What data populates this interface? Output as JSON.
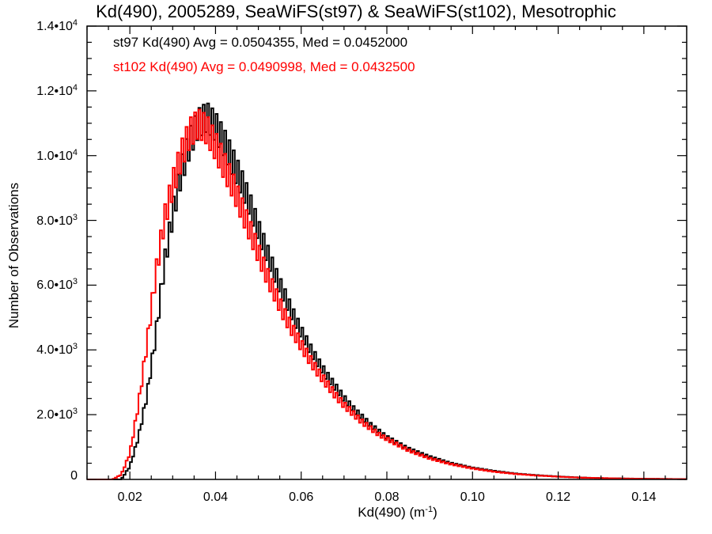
{
  "chart_data": {
    "type": "histogram",
    "title": "Kd(490), 2005289, SeaWiFS(st97) & SeaWiFS(st102), Mesotrophic",
    "xlabel": "Kd(490) (m",
    "xlabel_sup": "-1",
    "xlabel_end": ")",
    "ylabel": "Number of Observations",
    "xlim": [
      0.01,
      0.15
    ],
    "ylim": [
      0,
      14000
    ],
    "xticks": [
      0.02,
      0.04,
      0.06,
      0.08,
      0.1,
      0.12,
      0.14
    ],
    "xtick_labels": [
      "0.02",
      "0.04",
      "0.06",
      "0.08",
      "0.10",
      "0.12",
      "0.14"
    ],
    "yticks": [
      {
        "value": 0,
        "mantissa": "0",
        "exp": ""
      },
      {
        "value": 2000,
        "mantissa": "2.0•10",
        "exp": "3"
      },
      {
        "value": 4000,
        "mantissa": "4.0•10",
        "exp": "3"
      },
      {
        "value": 6000,
        "mantissa": "6.0•10",
        "exp": "3"
      },
      {
        "value": 8000,
        "mantissa": "8.0•10",
        "exp": "3"
      },
      {
        "value": 10000,
        "mantissa": "1.0•10",
        "exp": "4"
      },
      {
        "value": 12000,
        "mantissa": "1.2•10",
        "exp": "4"
      },
      {
        "value": 14000,
        "mantissa": "1.4•10",
        "exp": "4"
      }
    ],
    "annotations": [
      {
        "text": "st97 Kd(490) Avg = 0.0504355, Med = 0.0452000",
        "color": "#000000"
      },
      {
        "text": "st102 Kd(490) Avg = 0.0490998, Med = 0.0432500",
        "color": "#ff0000"
      }
    ],
    "bin_width": 0.0005,
    "series": [
      {
        "name": "st97",
        "color": "#000000",
        "x": [
          0.014,
          0.016,
          0.018,
          0.02,
          0.022,
          0.024,
          0.026,
          0.028,
          0.03,
          0.032,
          0.034,
          0.036,
          0.038,
          0.04,
          0.042,
          0.044,
          0.046,
          0.048,
          0.05,
          0.052,
          0.054,
          0.056,
          0.058,
          0.06,
          0.062,
          0.064,
          0.066,
          0.068,
          0.07,
          0.072,
          0.074,
          0.076,
          0.078,
          0.08,
          0.085,
          0.09,
          0.095,
          0.1,
          0.105,
          0.11,
          0.115,
          0.12,
          0.125,
          0.13,
          0.135,
          0.14,
          0.145,
          0.15
        ],
        "y": [
          0,
          0,
          0,
          400,
          1300,
          2600,
          4400,
          6600,
          8200,
          9500,
          10400,
          11000,
          11200,
          10900,
          10400,
          9800,
          9200,
          8500,
          7700,
          7000,
          6300,
          5700,
          5100,
          4550,
          4050,
          3600,
          3200,
          2850,
          2500,
          2200,
          1950,
          1700,
          1500,
          1300,
          950,
          700,
          500,
          360,
          260,
          180,
          130,
          90,
          60,
          40,
          30,
          20,
          15,
          10
        ],
        "noise": 450
      },
      {
        "name": "st102",
        "color": "#ff0000",
        "x": [
          0.014,
          0.016,
          0.018,
          0.02,
          0.022,
          0.024,
          0.026,
          0.028,
          0.03,
          0.032,
          0.034,
          0.036,
          0.038,
          0.04,
          0.042,
          0.044,
          0.046,
          0.048,
          0.05,
          0.052,
          0.054,
          0.056,
          0.058,
          0.06,
          0.062,
          0.064,
          0.066,
          0.068,
          0.07,
          0.072,
          0.074,
          0.076,
          0.078,
          0.08,
          0.085,
          0.09,
          0.095,
          0.1,
          0.105,
          0.11,
          0.115,
          0.12,
          0.125,
          0.13,
          0.135,
          0.14,
          0.145,
          0.15
        ],
        "y": [
          0,
          0,
          150,
          800,
          2300,
          4200,
          6300,
          8000,
          9100,
          10000,
          10700,
          11000,
          10800,
          10300,
          9700,
          9100,
          8400,
          7700,
          7000,
          6300,
          5700,
          5100,
          4600,
          4150,
          3700,
          3300,
          2950,
          2600,
          2300,
          2050,
          1800,
          1600,
          1400,
          1250,
          900,
          650,
          470,
          340,
          240,
          170,
          120,
          85,
          55,
          40,
          28,
          20,
          14,
          10
        ],
        "noise": 450
      }
    ]
  }
}
